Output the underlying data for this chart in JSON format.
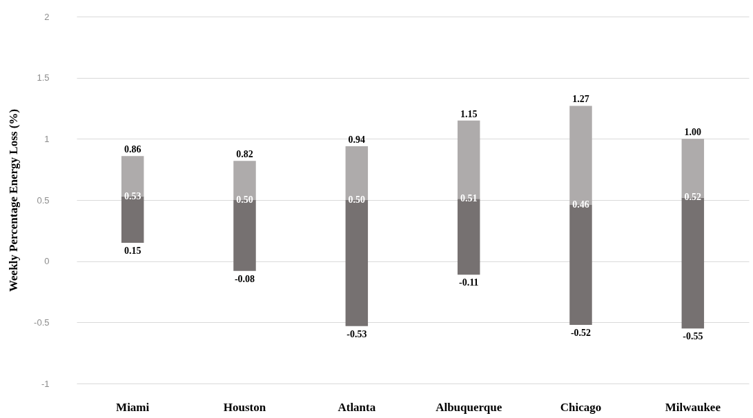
{
  "chart_data": {
    "type": "bar",
    "ylabel": "Weekly Percentage Energy Loss (%)",
    "categories": [
      "Miami",
      "Houston",
      "Atlanta",
      "Albuquerque",
      "Chicago",
      "Milwaukee"
    ],
    "series": [
      {
        "color": "#767171",
        "base": [
          0.15,
          -0.08,
          -0.53,
          -0.11,
          -0.52,
          -0.55
        ],
        "values": [
          0.38,
          0.58,
          1.03,
          0.62,
          0.98,
          1.07
        ]
      },
      {
        "color": "#aeabab",
        "base": [
          0.53,
          0.5,
          0.5,
          0.51,
          0.46,
          0.52
        ],
        "values": [
          0.33,
          0.32,
          0.44,
          0.64,
          0.81,
          0.48
        ]
      }
    ],
    "ylim": [
      -1,
      2
    ],
    "yticks": [
      -1,
      -0.5,
      0,
      0.5,
      1,
      1.5,
      2
    ],
    "grid": "y",
    "legend": false,
    "annotations": [
      {
        "text": "0.86",
        "x": "Miami",
        "y": 0.86
      },
      {
        "text": "0.53",
        "x": "Miami",
        "y": 0.53
      },
      {
        "text": "0.15",
        "x": "Miami",
        "y": 0.15
      },
      {
        "text": "0.82",
        "x": "Houston",
        "y": 0.82
      },
      {
        "text": "0.50",
        "x": "Houston",
        "y": 0.5
      },
      {
        "text": "-0.08",
        "x": "Houston",
        "y": -0.08
      },
      {
        "text": "0.94",
        "x": "Atlanta",
        "y": 0.94
      },
      {
        "text": "0.50",
        "x": "Atlanta",
        "y": 0.5
      },
      {
        "text": "-0.53",
        "x": "Atlanta",
        "y": -0.53
      },
      {
        "text": "1.15",
        "x": "Albuquerque",
        "y": 1.15
      },
      {
        "text": "0.51",
        "x": "Albuquerque",
        "y": 0.51
      },
      {
        "text": "-0.11",
        "x": "Albuquerque",
        "y": -0.11
      },
      {
        "text": "1.27",
        "x": "Chicago",
        "y": 1.27
      },
      {
        "text": "0.46",
        "x": "Chicago",
        "y": 0.46
      },
      {
        "text": "-0.52",
        "x": "Chicago",
        "y": -0.52
      },
      {
        "text": "1.00",
        "x": "Milwaukee",
        "y": 1.0
      },
      {
        "text": "0.52",
        "x": "Milwaukee",
        "y": 0.52
      },
      {
        "text": "-0.55",
        "x": "Milwaukee",
        "y": -0.55
      }
    ]
  }
}
